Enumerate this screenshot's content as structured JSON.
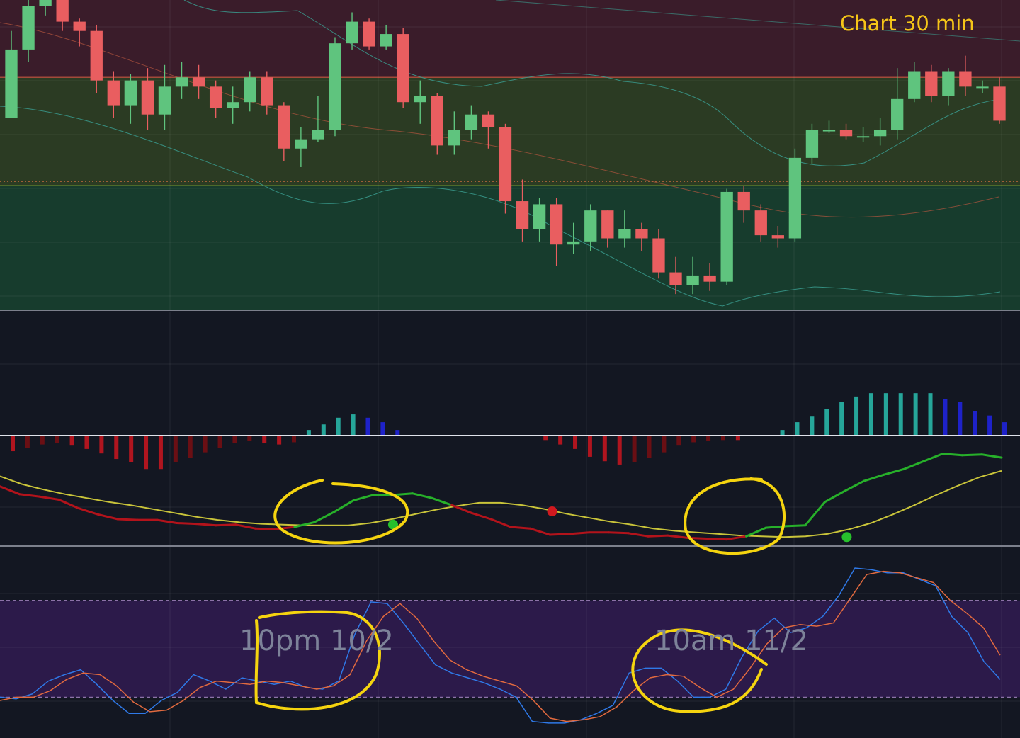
{
  "header": {
    "title": "Chart 30 min"
  },
  "annotations": {
    "note_1": "10pm 10/2",
    "note_2": "10am 11/2"
  },
  "colors": {
    "background": "#131722",
    "bull": "#5fc47e",
    "bear": "#e95e60",
    "zone_upper": "#3a1c2a",
    "zone_middle": "#2b3b23",
    "zone_lower": "#173c2d",
    "stoch_band": "#2c1a4a",
    "highlight": "#f5d40f",
    "title_text": "#f5c518"
  },
  "chart_data": [
    {
      "type": "candlestick",
      "title": "Chart 30 min",
      "ylim": [
        0,
        100
      ],
      "grid": true,
      "zones": [
        {
          "name": "",
          "from": 75,
          "to": 100
        },
        {
          "name": "",
          "from": 40,
          "to": 75
        },
        {
          "name": "",
          "from": 0,
          "to": 40
        }
      ],
      "candles": [
        [
          62,
          84,
          90,
          63
        ],
        [
          84,
          98,
          100,
          80
        ],
        [
          98,
          100,
          103,
          95
        ],
        [
          100,
          93,
          106,
          90
        ],
        [
          93,
          90,
          94,
          85
        ],
        [
          90,
          74,
          92,
          70
        ],
        [
          74,
          66,
          77,
          62
        ],
        [
          66,
          74,
          76,
          60
        ],
        [
          74,
          63,
          78,
          58
        ],
        [
          63,
          72,
          79,
          58
        ],
        [
          72,
          75,
          80,
          68
        ],
        [
          75,
          72,
          79,
          68
        ],
        [
          72,
          65,
          74,
          62
        ],
        [
          65,
          67,
          72,
          60
        ],
        [
          67,
          75,
          77,
          64
        ],
        [
          75,
          66,
          77,
          63
        ],
        [
          66,
          52,
          67,
          48
        ],
        [
          52,
          55,
          59,
          46
        ],
        [
          55,
          58,
          69,
          54
        ],
        [
          58,
          86,
          88,
          56
        ],
        [
          86,
          93,
          96,
          84
        ],
        [
          93,
          85,
          94,
          84
        ],
        [
          85,
          89,
          92,
          84
        ],
        [
          89,
          67,
          91,
          65
        ],
        [
          67,
          69,
          74,
          60
        ],
        [
          69,
          53,
          70,
          50
        ],
        [
          53,
          58,
          64,
          50
        ],
        [
          58,
          63,
          66,
          55
        ],
        [
          63,
          59,
          64,
          52
        ],
        [
          59,
          35,
          60,
          31
        ],
        [
          35,
          26,
          42,
          22
        ],
        [
          26,
          34,
          36,
          22
        ],
        [
          34,
          21,
          36,
          14
        ],
        [
          21,
          22,
          28,
          18
        ],
        [
          22,
          32,
          34,
          19
        ],
        [
          32,
          23,
          32,
          20
        ],
        [
          23,
          26,
          32,
          20
        ],
        [
          26,
          23,
          28,
          19
        ],
        [
          23,
          12,
          26,
          10
        ],
        [
          12,
          8,
          17,
          5
        ],
        [
          8,
          11,
          17,
          5
        ],
        [
          11,
          9,
          15,
          6
        ],
        [
          9,
          38,
          39,
          8
        ],
        [
          38,
          32,
          40,
          28
        ],
        [
          32,
          24,
          34,
          22
        ],
        [
          24,
          23,
          27,
          20
        ],
        [
          23,
          49,
          52,
          22
        ],
        [
          49,
          58,
          60,
          47
        ],
        [
          58,
          58,
          61,
          57
        ],
        [
          58,
          56,
          60,
          55
        ],
        [
          56,
          56,
          59,
          54
        ],
        [
          56,
          58,
          62,
          53
        ],
        [
          58,
          68,
          78,
          55
        ],
        [
          68,
          77,
          80,
          67
        ],
        [
          77,
          69,
          79,
          67
        ],
        [
          69,
          77,
          78,
          66
        ],
        [
          77,
          72,
          82,
          69
        ],
        [
          72,
          72,
          74,
          70
        ],
        [
          72,
          61,
          75,
          60
        ]
      ]
    },
    {
      "type": "bar",
      "title": "",
      "ylim": [
        -100,
        100
      ],
      "histogram": [
        -14,
        -11,
        -8,
        -7,
        -9,
        -12,
        -16,
        -21,
        -24,
        -30,
        -30,
        -24,
        -20,
        -15,
        -11,
        -7,
        -5,
        -7,
        -8,
        -6,
        5,
        10,
        16,
        19,
        16,
        12,
        5,
        0,
        0,
        0,
        0,
        0,
        0,
        0,
        0,
        0,
        -4,
        -8,
        -12,
        -19,
        -23,
        -26,
        -24,
        -20,
        -15,
        -9,
        -6,
        -5,
        -4,
        -4,
        0,
        0,
        5,
        12,
        17,
        24,
        30,
        35,
        38,
        38,
        38,
        38,
        38,
        33,
        30,
        22,
        18,
        12
      ],
      "fast_line": [
        12,
        2,
        -1,
        -5,
        -16,
        -24,
        -30,
        -31,
        -31,
        -35,
        -36,
        -38,
        -37,
        -42,
        -43,
        -40,
        -34,
        -21,
        -6,
        1,
        1,
        3,
        -3,
        -12,
        -22,
        -30,
        -40,
        -42,
        -50,
        -49,
        -47,
        -47,
        -48,
        -52,
        -51,
        -54,
        -55,
        -56,
        -52,
        -41,
        -39,
        -38,
        -8,
        6,
        19,
        27,
        34,
        44,
        54,
        52,
        53,
        49
      ],
      "signal_line": [
        25,
        15,
        8,
        2,
        -3,
        -8,
        -12,
        -17,
        -22,
        -27,
        -31,
        -34,
        -36,
        -37,
        -38,
        -38,
        -38,
        -35,
        -30,
        -24,
        -18,
        -13,
        -9,
        -9,
        -12,
        -17,
        -23,
        -28,
        -33,
        -37,
        -42,
        -45,
        -47,
        -49,
        -51,
        -52,
        -53,
        -52,
        -49,
        -43,
        -35,
        -24,
        -12,
        1,
        13,
        24,
        32
      ],
      "crossover_markers": [
        {
          "kind": "bullish",
          "x": 19.8,
          "y": -37
        },
        {
          "kind": "bearish",
          "x": 27.9,
          "y": -20
        },
        {
          "kind": "bullish",
          "x": 42.9,
          "y": -53
        }
      ]
    },
    {
      "type": "line",
      "title": "",
      "ylim": [
        0,
        100
      ],
      "band": [
        20,
        80
      ],
      "series": [
        {
          "name": "",
          "values": [
            20,
            19,
            22,
            30,
            34,
            37,
            28,
            18,
            10,
            10,
            18,
            23,
            34,
            30,
            25,
            32,
            30,
            28,
            30,
            26,
            25,
            30,
            59,
            79,
            78,
            66,
            53,
            40,
            35,
            32,
            29,
            25,
            20,
            5,
            4,
            4,
            6,
            10,
            15,
            35,
            38,
            38,
            30,
            20,
            20,
            25,
            45,
            61,
            69,
            60,
            63,
            70,
            83,
            100,
            99,
            97,
            97,
            93,
            89,
            70,
            60,
            42,
            31
          ]
        },
        {
          "name": "",
          "values": [
            18,
            20,
            20,
            24,
            31,
            35,
            34,
            27,
            17,
            11,
            12,
            18,
            26,
            30,
            29,
            28,
            30,
            29,
            27,
            25,
            27,
            34,
            55,
            70,
            78,
            69,
            55,
            43,
            37,
            33,
            30,
            27,
            18,
            7,
            5,
            6,
            8,
            14,
            24,
            32,
            34,
            33,
            26,
            20,
            25,
            38,
            53,
            63,
            65,
            64,
            66,
            81,
            96,
            98,
            97,
            94,
            91,
            80,
            72,
            63,
            46
          ]
        }
      ]
    }
  ]
}
